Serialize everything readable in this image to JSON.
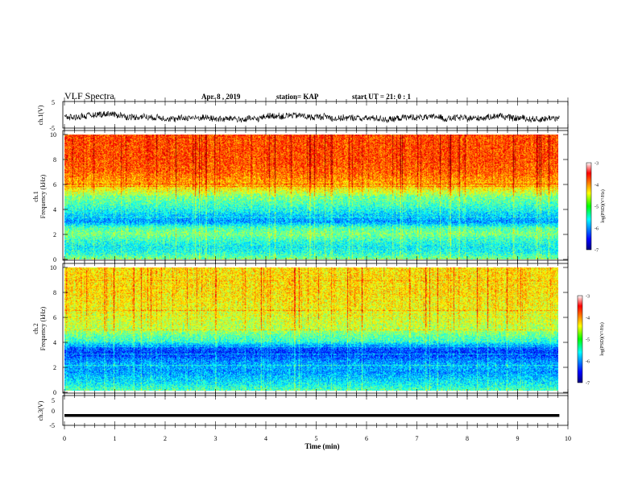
{
  "header": {
    "title": "VLF Spectra",
    "date": "Apr. 8 , 2019",
    "station": "station= KAP",
    "start_ut": "start UT =  21: 0  : 1"
  },
  "chart_data": [
    {
      "type": "line",
      "panel": "ch1-waveform",
      "ylabel": "ch.1(V)",
      "ylim": [
        -5,
        5
      ],
      "y_ticks": [
        "5",
        "-5"
      ],
      "x_range_min": [
        0,
        9.83
      ],
      "description_values": "noisy waveform around -1 V, amplitude about +/-2 V",
      "color": "#000000"
    },
    {
      "type": "heatmap",
      "panel": "ch1-spectrogram",
      "ylabel": "ch.1\nFrequency (kHz)",
      "ylim": [
        0,
        10
      ],
      "y_ticks": [
        "0",
        "2",
        "4",
        "6",
        "8",
        "10"
      ],
      "x_range_min": [
        0,
        9.83
      ],
      "colorbar": {
        "label": "log(PSD)(V²/Hz)",
        "range": [
          -7,
          -3
        ],
        "ticks": [
          "-3",
          "-4",
          "-5",
          "-6",
          "-7"
        ],
        "colormap": "jet"
      },
      "frequency_profile_logpsd": [
        [
          0.0,
          -5.0
        ],
        [
          0.5,
          -5.4
        ],
        [
          1.0,
          -5.5
        ],
        [
          1.5,
          -5.3
        ],
        [
          2.0,
          -5.0
        ],
        [
          2.5,
          -5.2
        ],
        [
          3.0,
          -5.9
        ],
        [
          3.5,
          -5.7
        ],
        [
          4.0,
          -5.4
        ],
        [
          4.5,
          -5.2
        ],
        [
          5.0,
          -5.0
        ],
        [
          5.5,
          -4.6
        ],
        [
          6.0,
          -4.2
        ],
        [
          7.0,
          -3.9
        ],
        [
          8.0,
          -3.8
        ],
        [
          9.0,
          -3.8
        ],
        [
          10.0,
          -3.8
        ]
      ]
    },
    {
      "type": "heatmap",
      "panel": "ch2-spectrogram",
      "ylabel": "ch.2\nFrequency (kHz)",
      "ylim": [
        0,
        10
      ],
      "y_ticks": [
        "0",
        "2",
        "4",
        "6",
        "8",
        "10"
      ],
      "x_range_min": [
        0,
        9.83
      ],
      "colorbar": {
        "label": "log(PSD)(V²/Hz)",
        "range": [
          -7,
          -3
        ],
        "ticks": [
          "-3",
          "-4",
          "-5",
          "-6",
          "-7"
        ],
        "colormap": "jet"
      },
      "frequency_profile_logpsd": [
        [
          0.0,
          -5.2
        ],
        [
          0.5,
          -5.5
        ],
        [
          1.0,
          -5.7
        ],
        [
          1.5,
          -5.9
        ],
        [
          2.0,
          -5.8
        ],
        [
          2.5,
          -6.0
        ],
        [
          3.0,
          -6.3
        ],
        [
          3.5,
          -6.1
        ],
        [
          4.0,
          -5.3
        ],
        [
          4.5,
          -5.1
        ],
        [
          5.0,
          -4.8
        ],
        [
          5.5,
          -4.7
        ],
        [
          6.0,
          -4.6
        ],
        [
          7.0,
          -4.5
        ],
        [
          8.0,
          -4.4
        ],
        [
          9.0,
          -4.4
        ],
        [
          10.0,
          -4.4
        ]
      ]
    },
    {
      "type": "line",
      "panel": "ch3-waveform",
      "ylabel": "ch.3(V)",
      "ylim": [
        -5,
        5
      ],
      "y_ticks": [
        "5",
        "0",
        "-5"
      ],
      "x_range_min": [
        0,
        9.83
      ],
      "constant_value": -1.7,
      "color": "#000000"
    }
  ],
  "x_axis": {
    "label": "Time (min)",
    "ticks": [
      "0",
      "1",
      "2",
      "3",
      "4",
      "5",
      "6",
      "7",
      "8",
      "9",
      "10"
    ],
    "range": [
      0,
      10
    ]
  }
}
